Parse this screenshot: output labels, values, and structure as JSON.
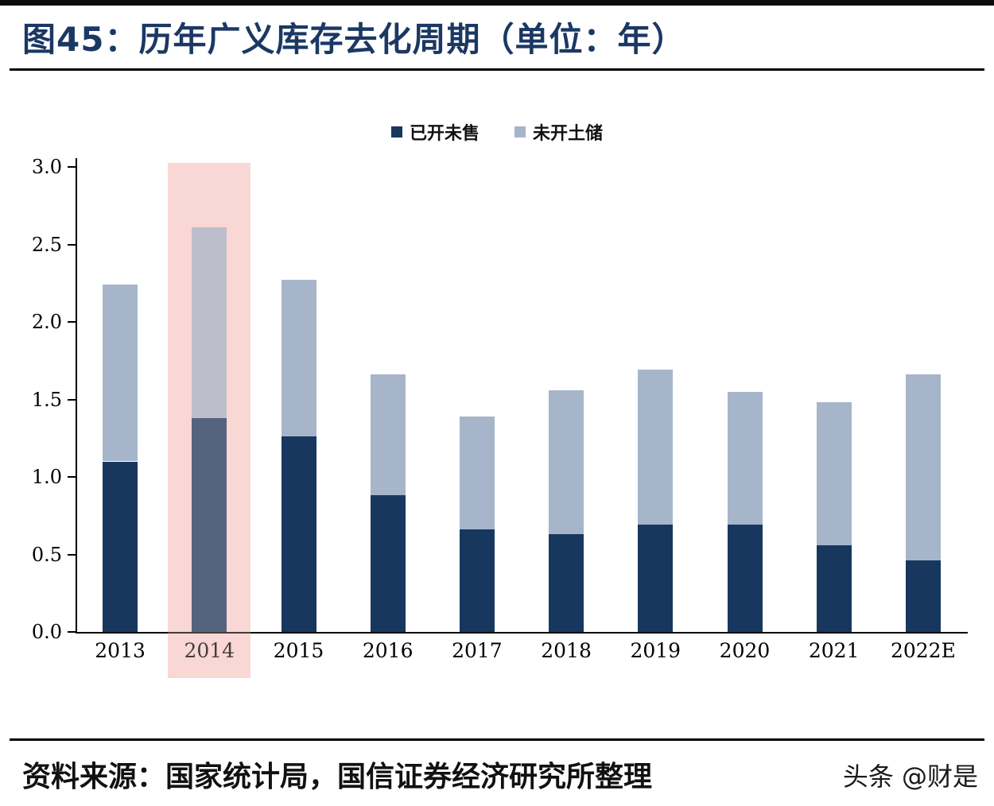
{
  "title": "图45：历年广义库存去化周期（单位：年）",
  "colors": {
    "title": "#1b3864",
    "rule": "#000000",
    "top_border": "#0d0d0d",
    "axis": "#000000"
  },
  "legend": [
    {
      "label": "已开未售",
      "color": "#17375e"
    },
    {
      "label": "未开土储",
      "color": "#a6b5ca"
    }
  ],
  "source": "资料来源：国家统计局，国信证券经济研究所整理",
  "watermark": "头条 @财是",
  "chart_data": {
    "type": "bar",
    "stacked": true,
    "title": "图45：历年广义库存去化周期（单位：年）",
    "unit": "年",
    "categories": [
      "2013",
      "2014",
      "2015",
      "2016",
      "2017",
      "2018",
      "2019",
      "2020",
      "2021",
      "2022E"
    ],
    "series": [
      {
        "name": "已开未售",
        "color": "#17375e",
        "values": [
          1.1,
          1.38,
          1.26,
          0.88,
          0.66,
          0.63,
          0.69,
          0.69,
          0.56,
          0.46
        ]
      },
      {
        "name": "未开土储",
        "color": "#a6b5ca",
        "values": [
          1.14,
          1.23,
          1.01,
          0.78,
          0.73,
          0.93,
          1.0,
          0.86,
          0.92,
          1.2
        ]
      }
    ],
    "totals": [
      2.24,
      2.61,
      2.27,
      1.66,
      1.39,
      1.56,
      1.69,
      1.55,
      1.48,
      1.66
    ],
    "ylim": [
      0,
      3.0
    ],
    "ytick_labels": [
      "0.0",
      "0.5",
      "1.0",
      "1.5",
      "2.0",
      "2.5",
      "3.0"
    ],
    "grid": false,
    "legend_position": "top",
    "highlight_category": "2014",
    "highlight_color": "#f8d7d5"
  }
}
